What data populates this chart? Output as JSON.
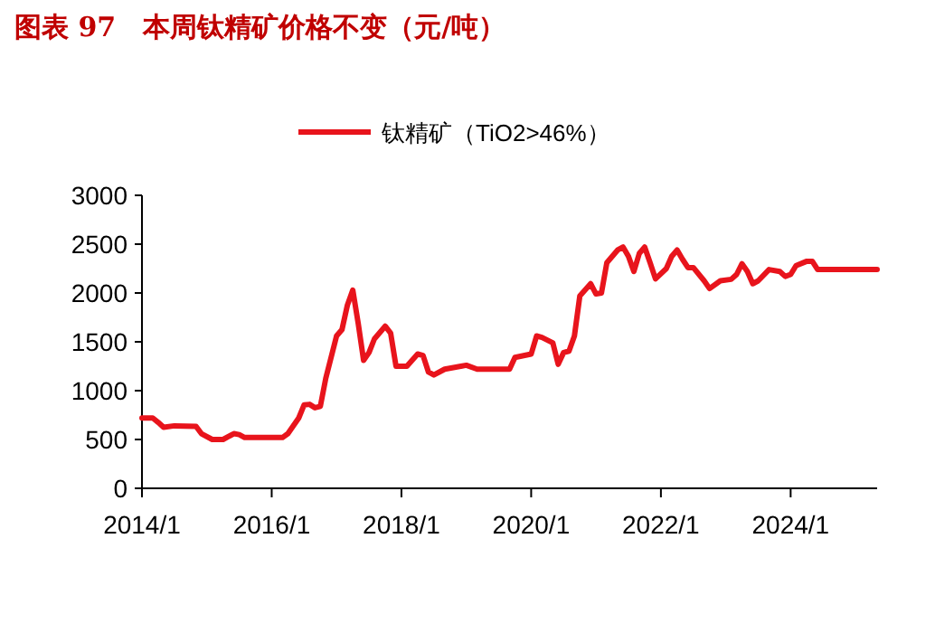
{
  "chart_data": {
    "type": "line",
    "title": "图表 97　本周钛精矿价格不变（元/吨）",
    "legend": "top",
    "xlim": [
      "2014-01",
      "2025-05"
    ],
    "ylim": [
      0,
      3000
    ],
    "xticks": [
      {
        "value": "2014-01",
        "label": "2014/1"
      },
      {
        "value": "2016-01",
        "label": "2016/1"
      },
      {
        "value": "2018-01",
        "label": "2018/1"
      },
      {
        "value": "2020-01",
        "label": "2020/1"
      },
      {
        "value": "2022-01",
        "label": "2022/1"
      },
      {
        "value": "2024-01",
        "label": "2024/1"
      }
    ],
    "yticks": [
      0,
      500,
      1000,
      1500,
      2000,
      2500,
      3000
    ],
    "x": [
      "2014-01",
      "2014-03",
      "2014-04",
      "2014-05",
      "2014-07",
      "2014-11",
      "2014-12",
      "2015-02",
      "2015-04",
      "2015-06",
      "2015-07",
      "2015-08",
      "2016-01",
      "2016-03",
      "2016-04",
      "2016-06",
      "2016-07",
      "2016-08",
      "2016-09",
      "2016-10",
      "2016-11",
      "2017-01",
      "2017-02",
      "2017-03",
      "2017-04",
      "2017-05",
      "2017-06",
      "2017-07",
      "2017-08",
      "2017-10",
      "2017-11",
      "2017-12",
      "2018-02",
      "2018-04",
      "2018-05",
      "2018-06",
      "2018-07",
      "2018-09",
      "2018-12",
      "2019-01",
      "2019-03",
      "2019-09",
      "2019-10",
      "2020-01",
      "2020-02",
      "2020-03",
      "2020-05",
      "2020-06",
      "2020-07",
      "2020-08",
      "2020-09",
      "2020-10",
      "2020-12",
      "2021-01",
      "2021-02",
      "2021-03",
      "2021-05",
      "2021-06",
      "2021-07",
      "2021-08",
      "2021-09",
      "2021-10",
      "2021-11",
      "2021-12",
      "2022-02",
      "2022-03",
      "2022-04",
      "2022-05",
      "2022-06",
      "2022-07",
      "2022-09",
      "2022-10",
      "2022-12",
      "2023-02",
      "2023-03",
      "2023-04",
      "2023-05",
      "2023-06",
      "2023-07",
      "2023-09",
      "2023-11",
      "2023-12",
      "2024-01",
      "2024-02",
      "2024-04",
      "2024-05",
      "2024-06",
      "2025-05"
    ],
    "series": [
      {
        "name": "钛精矿（TiO2>46%）",
        "color": "#e8141c",
        "values": [
          720,
          720,
          675,
          625,
          640,
          635,
          560,
          500,
          500,
          560,
          550,
          520,
          520,
          520,
          560,
          720,
          855,
          860,
          825,
          840,
          1125,
          1560,
          1625,
          1875,
          2030,
          1690,
          1310,
          1390,
          1530,
          1660,
          1590,
          1250,
          1250,
          1375,
          1360,
          1190,
          1160,
          1220,
          1250,
          1260,
          1220,
          1220,
          1340,
          1375,
          1560,
          1545,
          1490,
          1270,
          1390,
          1405,
          1560,
          1970,
          2095,
          1990,
          2000,
          2310,
          2440,
          2470,
          2375,
          2220,
          2405,
          2470,
          2310,
          2145,
          2250,
          2375,
          2440,
          2345,
          2260,
          2260,
          2125,
          2045,
          2125,
          2140,
          2190,
          2300,
          2220,
          2095,
          2125,
          2240,
          2220,
          2170,
          2190,
          2280,
          2325,
          2325,
          2240,
          2240
        ]
      }
    ]
  }
}
